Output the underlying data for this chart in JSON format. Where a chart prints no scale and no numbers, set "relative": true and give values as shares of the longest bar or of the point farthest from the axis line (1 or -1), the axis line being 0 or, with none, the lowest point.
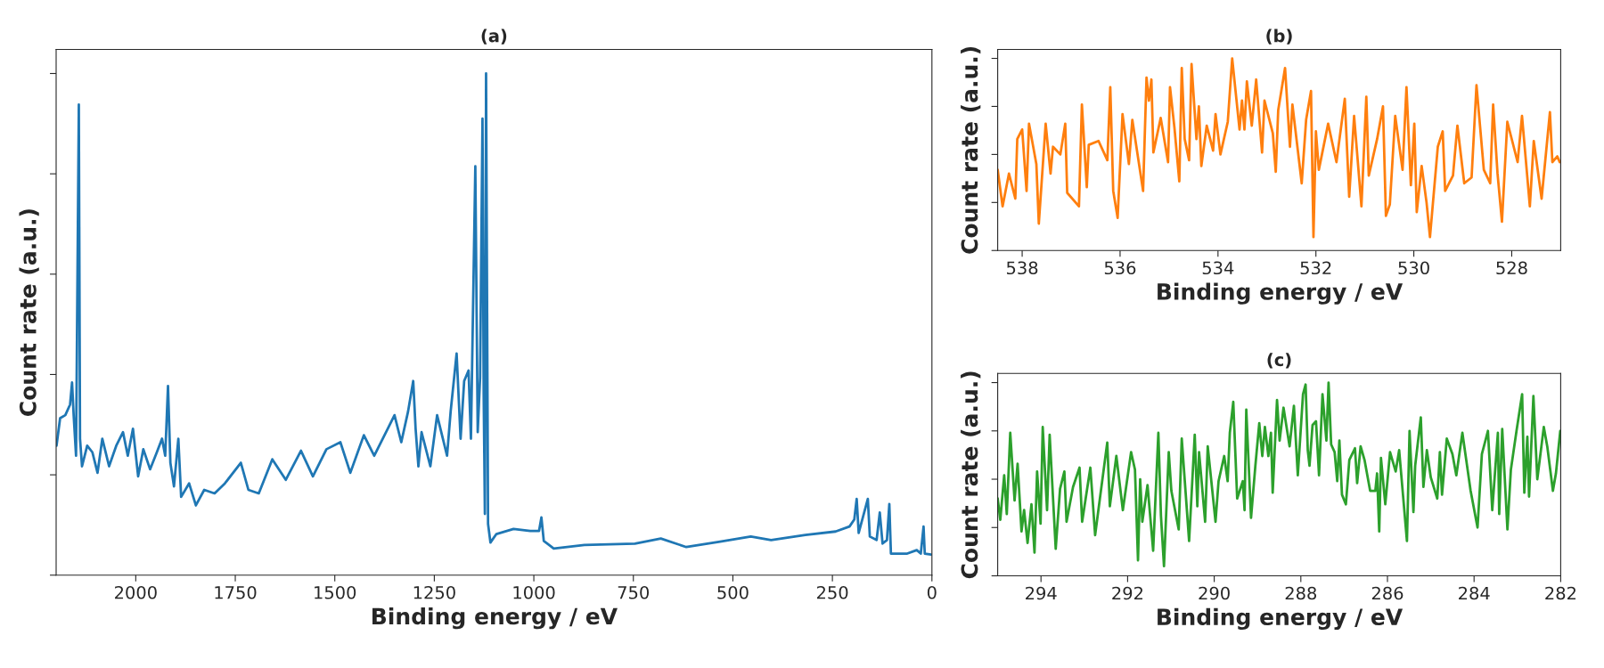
{
  "chart_data": [
    {
      "type": "line",
      "title": "(a)",
      "xlabel": "Binding energy / eV",
      "ylabel": "Count rate (a.u.)",
      "relative": true,
      "tick_labels": "x",
      "xlim": [
        2200,
        0
      ],
      "xticks": [
        2000,
        1750,
        1500,
        1250,
        1000,
        750,
        500,
        250,
        0
      ],
      "series": [
        {
          "color": "#1f77b4",
          "x": [
            2199,
            2190,
            2177,
            2165,
            2160,
            2156,
            2150,
            2143,
            2140,
            2135,
            2122,
            2109,
            2096,
            2084,
            2067,
            2049,
            2032,
            2020,
            2007,
            1994,
            1981,
            1964,
            1947,
            1934,
            1926,
            1919,
            1913,
            1904,
            1893,
            1886,
            1866,
            1849,
            1828,
            1802,
            1776,
            1736,
            1717,
            1691,
            1657,
            1623,
            1585,
            1555,
            1521,
            1486,
            1461,
            1427,
            1401,
            1367,
            1350,
            1333,
            1316,
            1303,
            1297,
            1290,
            1282,
            1260,
            1243,
            1218,
            1209,
            1194,
            1184,
            1175,
            1164,
            1158,
            1147,
            1141,
            1135,
            1129,
            1126,
            1123,
            1120,
            1115,
            1109,
            1094,
            1051,
            1009,
            987,
            981,
            975,
            958,
            950,
            873,
            746,
            681,
            617,
            532,
            455,
            404,
            318,
            242,
            207,
            195,
            189,
            184,
            161,
            156,
            139,
            131,
            124,
            113,
            107,
            103,
            62,
            38,
            28,
            21,
            18,
            2
          ],
          "values": [
            0.258,
            0.313,
            0.319,
            0.34,
            0.384,
            0.319,
            0.238,
            0.938,
            0.272,
            0.217,
            0.258,
            0.245,
            0.204,
            0.272,
            0.217,
            0.258,
            0.285,
            0.238,
            0.292,
            0.197,
            0.251,
            0.211,
            0.245,
            0.272,
            0.238,
            0.377,
            0.224,
            0.177,
            0.272,
            0.156,
            0.183,
            0.139,
            0.17,
            0.163,
            0.183,
            0.224,
            0.17,
            0.163,
            0.231,
            0.19,
            0.248,
            0.197,
            0.251,
            0.265,
            0.204,
            0.279,
            0.238,
            0.292,
            0.319,
            0.265,
            0.326,
            0.387,
            0.292,
            0.217,
            0.285,
            0.217,
            0.319,
            0.238,
            0.326,
            0.442,
            0.272,
            0.387,
            0.408,
            0.272,
            0.815,
            0.285,
            0.394,
            0.91,
            0.36,
            0.122,
            1.0,
            0.102,
            0.065,
            0.082,
            0.092,
            0.088,
            0.088,
            0.115,
            0.068,
            0.058,
            0.053,
            0.06,
            0.063,
            0.073,
            0.056,
            0.067,
            0.077,
            0.07,
            0.08,
            0.087,
            0.097,
            0.111,
            0.152,
            0.084,
            0.152,
            0.077,
            0.07,
            0.125,
            0.063,
            0.07,
            0.142,
            0.043,
            0.043,
            0.05,
            0.043,
            0.097,
            0.043,
            0.041
          ]
        }
      ]
    },
    {
      "type": "line",
      "title": "(b)",
      "xlabel": "Binding energy / eV",
      "ylabel": "Count rate (a.u.)",
      "relative": true,
      "tick_labels": "x",
      "xlim": [
        538.5,
        527
      ],
      "xticks": [
        538,
        536,
        534,
        532,
        530,
        528
      ],
      "series": [
        {
          "color": "#ff7f0e",
          "x": [
            538.5,
            538.4,
            538.27,
            538.14,
            538.1,
            538.0,
            537.91,
            537.86,
            537.71,
            537.66,
            537.52,
            537.42,
            537.37,
            537.22,
            537.12,
            537.08,
            536.84,
            536.78,
            536.68,
            536.64,
            536.44,
            536.26,
            536.2,
            536.14,
            536.05,
            535.95,
            535.82,
            535.75,
            535.53,
            535.46,
            535.41,
            535.36,
            535.32,
            535.17,
            535.02,
            534.98,
            534.89,
            534.79,
            534.74,
            534.68,
            534.59,
            534.54,
            534.44,
            534.39,
            534.34,
            534.23,
            534.1,
            534.05,
            533.95,
            533.8,
            533.71,
            533.56,
            533.51,
            533.46,
            533.41,
            533.31,
            533.22,
            533.1,
            533.05,
            532.88,
            532.82,
            532.77,
            532.63,
            532.53,
            532.48,
            532.29,
            532.2,
            532.1,
            532.05,
            532.0,
            531.94,
            531.75,
            531.58,
            531.41,
            531.32,
            531.22,
            531.07,
            530.97,
            530.92,
            530.75,
            530.63,
            530.57,
            530.49,
            530.38,
            530.23,
            530.15,
            530.06,
            529.99,
            529.94,
            529.84,
            529.74,
            529.67,
            529.51,
            529.41,
            529.36,
            529.2,
            529.11,
            528.97,
            528.82,
            528.72,
            528.57,
            528.44,
            528.38,
            528.29,
            528.2,
            528.09,
            527.88,
            527.79,
            527.63,
            527.55,
            527.39,
            527.22,
            527.17,
            527.07,
            527.02
          ],
          "values": [
            0.42,
            0.23,
            0.4,
            0.27,
            0.58,
            0.63,
            0.31,
            0.66,
            0.45,
            0.14,
            0.66,
            0.4,
            0.54,
            0.5,
            0.66,
            0.3,
            0.23,
            0.76,
            0.33,
            0.55,
            0.57,
            0.47,
            0.85,
            0.31,
            0.17,
            0.71,
            0.45,
            0.68,
            0.31,
            0.9,
            0.78,
            0.89,
            0.51,
            0.69,
            0.46,
            0.85,
            0.64,
            0.36,
            0.95,
            0.58,
            0.47,
            0.97,
            0.58,
            0.75,
            0.44,
            0.65,
            0.52,
            0.71,
            0.5,
            0.67,
            1.0,
            0.63,
            0.78,
            0.63,
            0.88,
            0.65,
            0.89,
            0.51,
            0.78,
            0.61,
            0.41,
            0.73,
            0.95,
            0.54,
            0.76,
            0.35,
            0.68,
            0.83,
            0.07,
            0.62,
            0.42,
            0.66,
            0.46,
            0.79,
            0.28,
            0.7,
            0.23,
            0.8,
            0.39,
            0.58,
            0.75,
            0.18,
            0.24,
            0.7,
            0.42,
            0.85,
            0.34,
            0.66,
            0.2,
            0.44,
            0.25,
            0.07,
            0.54,
            0.62,
            0.31,
            0.39,
            0.65,
            0.35,
            0.38,
            0.86,
            0.42,
            0.35,
            0.76,
            0.4,
            0.15,
            0.67,
            0.46,
            0.7,
            0.23,
            0.57,
            0.27,
            0.72,
            0.46,
            0.49,
            0.46
          ]
        }
      ]
    },
    {
      "type": "line",
      "title": "(c)",
      "xlabel": "Binding energy / eV",
      "ylabel": "Count rate (a.u.)",
      "relative": true,
      "tick_labels": "x",
      "xlim": [
        295,
        282
      ],
      "xticks": [
        294,
        292,
        290,
        288,
        286,
        284,
        282
      ],
      "series": [
        {
          "color": "#2ca02c",
          "x": [
            295.0,
            294.94,
            294.85,
            294.79,
            294.71,
            294.61,
            294.54,
            294.45,
            294.39,
            294.31,
            294.22,
            294.15,
            294.09,
            294.01,
            293.96,
            293.86,
            293.8,
            293.66,
            293.56,
            293.46,
            293.41,
            293.26,
            293.11,
            293.05,
            292.86,
            292.75,
            292.64,
            292.47,
            292.41,
            292.26,
            292.11,
            291.92,
            291.83,
            291.76,
            291.71,
            291.66,
            291.54,
            291.41,
            291.29,
            291.23,
            291.16,
            291.05,
            290.99,
            290.82,
            290.75,
            290.58,
            290.45,
            290.39,
            290.35,
            290.21,
            290.15,
            289.97,
            289.9,
            289.77,
            289.69,
            289.64,
            289.56,
            289.47,
            289.34,
            289.3,
            289.26,
            289.15,
            289.05,
            288.96,
            288.89,
            288.83,
            288.75,
            288.69,
            288.65,
            288.55,
            288.49,
            288.4,
            288.26,
            288.16,
            288.07,
            287.95,
            287.89,
            287.84,
            287.8,
            287.73,
            287.65,
            287.58,
            287.5,
            287.41,
            287.36,
            287.3,
            287.22,
            287.16,
            287.11,
            287.05,
            286.96,
            286.88,
            286.75,
            286.7,
            286.62,
            286.53,
            286.4,
            286.28,
            286.24,
            286.19,
            286.15,
            286.05,
            285.94,
            285.81,
            285.73,
            285.55,
            285.49,
            285.4,
            285.36,
            285.23,
            285.17,
            285.09,
            285.0,
            284.85,
            284.79,
            284.74,
            284.63,
            284.5,
            284.41,
            284.27,
            284.08,
            283.92,
            283.82,
            283.68,
            283.58,
            283.45,
            283.42,
            283.35,
            283.23,
            283.15,
            283.02,
            282.89,
            282.84,
            282.77,
            282.73,
            282.63,
            282.54,
            282.39,
            282.31,
            282.18,
            282.11,
            282.01
          ],
          "values": [
            0.4,
            0.29,
            0.52,
            0.32,
            0.74,
            0.39,
            0.58,
            0.23,
            0.34,
            0.17,
            0.37,
            0.12,
            0.54,
            0.27,
            0.77,
            0.34,
            0.73,
            0.14,
            0.45,
            0.54,
            0.28,
            0.46,
            0.56,
            0.28,
            0.56,
            0.21,
            0.4,
            0.69,
            0.36,
            0.62,
            0.34,
            0.64,
            0.55,
            0.08,
            0.5,
            0.28,
            0.47,
            0.13,
            0.74,
            0.31,
            0.05,
            0.64,
            0.44,
            0.24,
            0.71,
            0.18,
            0.73,
            0.36,
            0.64,
            0.28,
            0.67,
            0.28,
            0.49,
            0.62,
            0.49,
            0.74,
            0.9,
            0.4,
            0.49,
            0.34,
            0.86,
            0.3,
            0.57,
            0.79,
            0.62,
            0.77,
            0.62,
            0.74,
            0.43,
            0.91,
            0.7,
            0.87,
            0.67,
            0.88,
            0.52,
            0.94,
            0.99,
            0.65,
            0.57,
            0.78,
            0.8,
            0.52,
            0.94,
            0.7,
            1.0,
            0.68,
            0.64,
            0.49,
            0.7,
            0.42,
            0.37,
            0.6,
            0.66,
            0.48,
            0.67,
            0.6,
            0.44,
            0.44,
            0.53,
            0.23,
            0.61,
            0.37,
            0.64,
            0.54,
            0.65,
            0.18,
            0.75,
            0.33,
            0.57,
            0.82,
            0.46,
            0.65,
            0.51,
            0.4,
            0.64,
            0.42,
            0.71,
            0.63,
            0.52,
            0.74,
            0.44,
            0.25,
            0.63,
            0.75,
            0.34,
            0.74,
            0.32,
            0.76,
            0.24,
            0.55,
            0.75,
            0.94,
            0.43,
            0.72,
            0.41,
            0.93,
            0.5,
            0.77,
            0.67,
            0.44,
            0.53,
            0.75
          ]
        }
      ]
    }
  ]
}
